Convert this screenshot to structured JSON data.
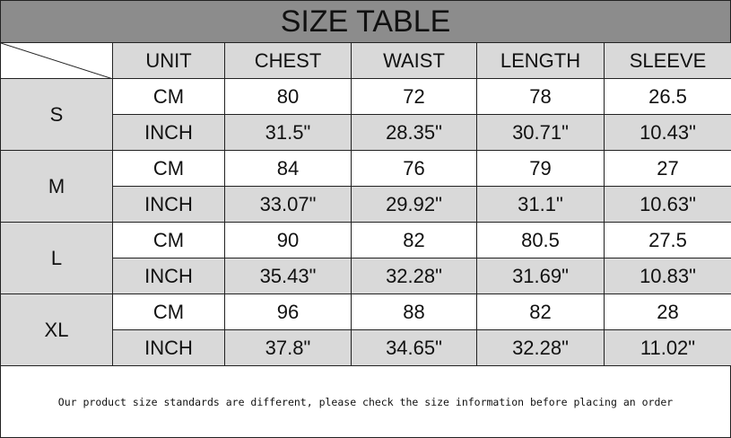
{
  "title": "SIZE TABLE",
  "headers": [
    "UNIT",
    "CHEST",
    "WAIST",
    "LENGTH",
    "SLEEVE"
  ],
  "sizes": [
    {
      "size": "S",
      "rows": [
        {
          "unit": "CM",
          "values": [
            "80",
            "72",
            "78",
            "26.5"
          ]
        },
        {
          "unit": "INCH",
          "values": [
            "31.5\"",
            "28.35\"",
            "30.71\"",
            "10.43\""
          ]
        }
      ]
    },
    {
      "size": "M",
      "rows": [
        {
          "unit": "CM",
          "values": [
            "84",
            "76",
            "79",
            "27"
          ]
        },
        {
          "unit": "INCH",
          "values": [
            "33.07\"",
            "29.92\"",
            "31.1\"",
            "10.63\""
          ]
        }
      ]
    },
    {
      "size": "L",
      "rows": [
        {
          "unit": "CM",
          "values": [
            "90",
            "82",
            "80.5",
            "27.5"
          ]
        },
        {
          "unit": "INCH",
          "values": [
            "35.43\"",
            "32.28\"",
            "31.69\"",
            "10.83\""
          ]
        }
      ]
    },
    {
      "size": "XL",
      "rows": [
        {
          "unit": "CM",
          "values": [
            "96",
            "88",
            "82",
            "28"
          ]
        },
        {
          "unit": "INCH",
          "values": [
            "37.8\"",
            "34.65\"",
            "32.28\"",
            "11.02\""
          ]
        }
      ]
    }
  ],
  "footer": "Our product size standards are different, please check the size information before placing an order",
  "colors": {
    "title_bg": "#8c8c8c",
    "cell_gray": "#d9d9d9"
  }
}
